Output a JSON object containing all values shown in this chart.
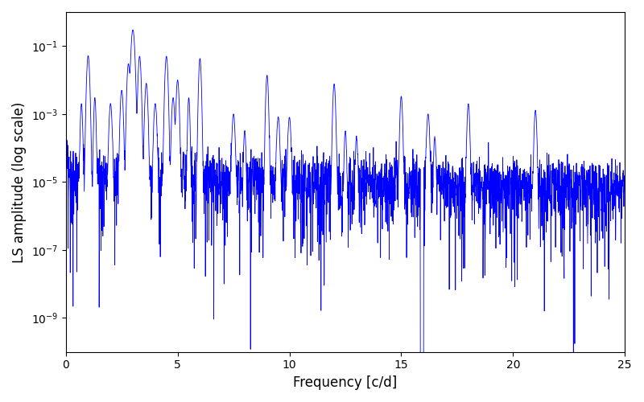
{
  "xlabel": "Frequency [c/d]",
  "ylabel": "LS amplitude (log scale)",
  "xlim": [
    0,
    25
  ],
  "ylim": [
    1e-10,
    1.0
  ],
  "line_color": "#0000ff",
  "line_width": 0.6,
  "background_color": "#ffffff",
  "figsize": [
    8.0,
    5.0
  ],
  "dpi": 100,
  "yticks": [
    1e-09,
    1e-07,
    1e-05,
    0.001,
    0.1
  ],
  "xticks": [
    0,
    5,
    10,
    15,
    20,
    25
  ]
}
